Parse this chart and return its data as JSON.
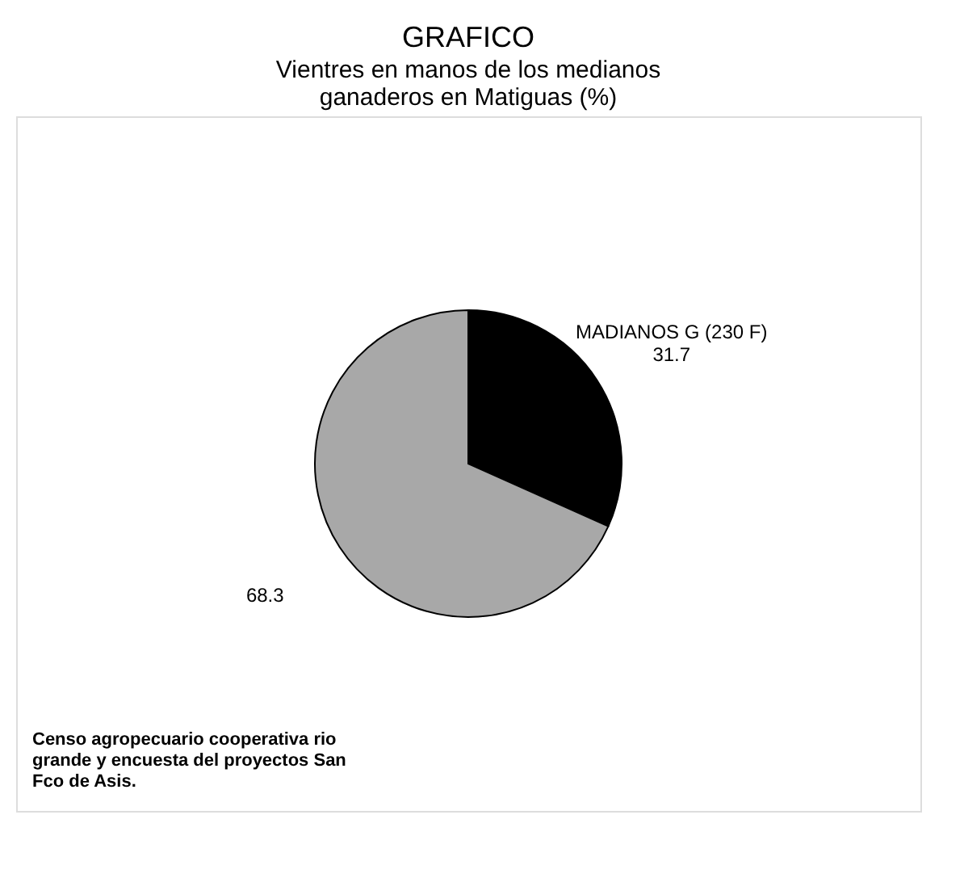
{
  "chart_data": {
    "type": "pie",
    "title": "GRAFICO",
    "subtitle": "Vientres en manos de los medianos ganaderos en Matiguas (%)",
    "categories": [
      "MADIANOS G (230 F)",
      null
    ],
    "values": [
      31.7,
      68.3
    ],
    "colors": [
      "#000000",
      "#a8a8a8"
    ],
    "data_labels": true,
    "legend": false,
    "annotations": [
      "Censo agropecuario cooperativa rio grande y encuesta del proyectos San Fco de Asis."
    ]
  }
}
